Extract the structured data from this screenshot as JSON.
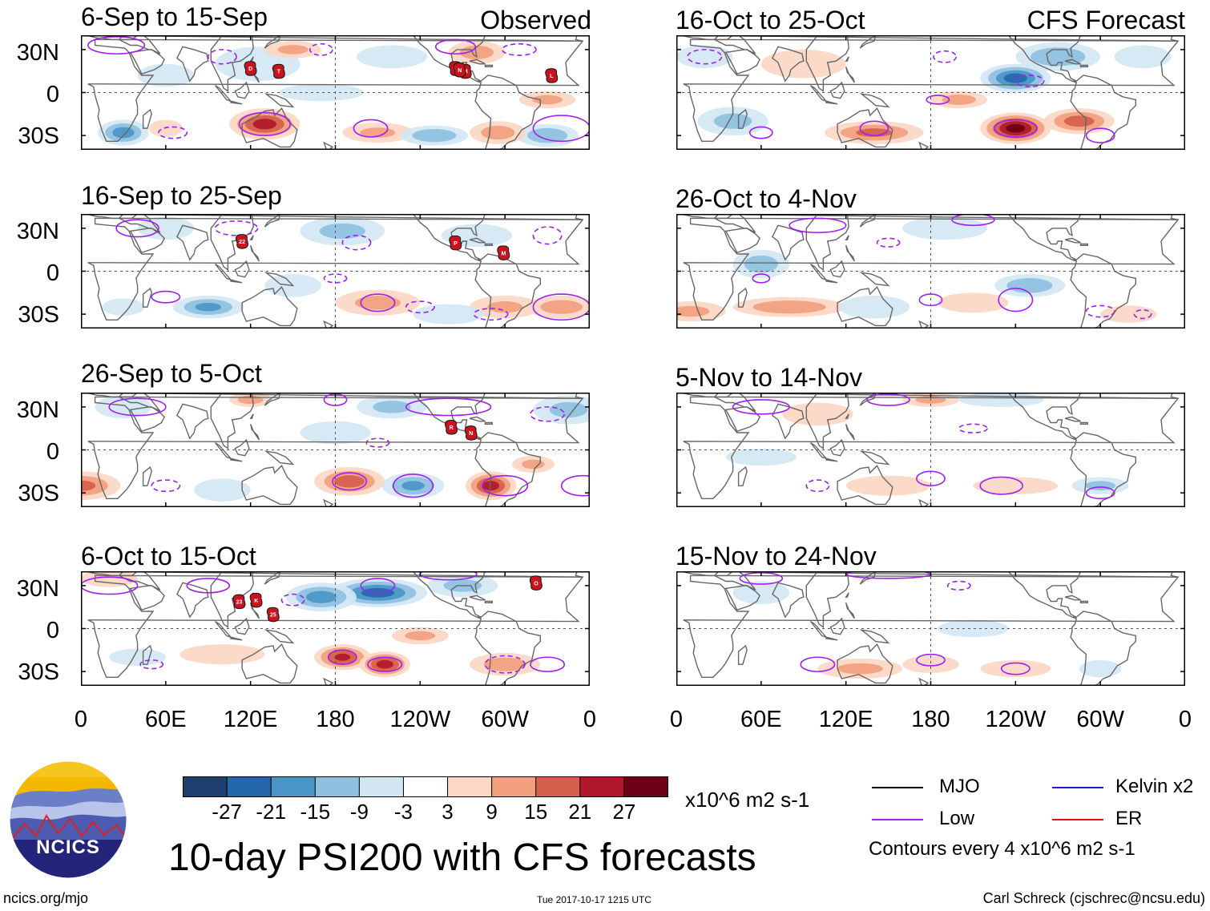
{
  "panels": [
    {
      "title": "6-Sep to 15-Sep",
      "tag": "Observed",
      "storms": [
        {
          "label": "D",
          "lon": 120,
          "lat": 17
        },
        {
          "label": "T",
          "lon": 140,
          "lat": 15
        },
        {
          "label": "O",
          "lon": -95,
          "lat": 17
        },
        {
          "label": "M",
          "lon": -88,
          "lat": 15
        },
        {
          "label": "L",
          "lon": -27,
          "lat": 12
        },
        {
          "label": "N",
          "lon": -92,
          "lat": 16
        }
      ]
    },
    {
      "title": "16-Sep to 25-Sep",
      "tag": "",
      "storms": [
        {
          "label": "22",
          "lon": 114,
          "lat": 21
        },
        {
          "label": "P",
          "lon": -95,
          "lat": 20
        },
        {
          "label": "M",
          "lon": -61,
          "lat": 13
        }
      ]
    },
    {
      "title": "26-Sep to 5-Oct",
      "tag": "",
      "storms": [
        {
          "label": "R",
          "lon": -98,
          "lat": 16
        },
        {
          "label": "N",
          "lon": -84,
          "lat": 12
        }
      ]
    },
    {
      "title": "6-Oct to 15-Oct",
      "tag": "",
      "storms": [
        {
          "label": "23",
          "lon": 112,
          "lat": 19
        },
        {
          "label": "K",
          "lon": 124,
          "lat": 20
        },
        {
          "label": "25",
          "lon": 136,
          "lat": 10
        },
        {
          "label": "O",
          "lon": -38,
          "lat": 32
        }
      ]
    },
    {
      "title": "16-Oct to 25-Oct",
      "tag": "CFS Forecast",
      "storms": []
    },
    {
      "title": "26-Oct to 4-Nov",
      "tag": "",
      "storms": []
    },
    {
      "title": "5-Nov to 14-Nov",
      "tag": "",
      "storms": []
    },
    {
      "title": "15-Nov to 24-Nov",
      "tag": "",
      "storms": []
    }
  ],
  "lat_labels": [
    "30N",
    "0",
    "30S"
  ],
  "lon_labels": [
    "0",
    "60E",
    "120E",
    "180",
    "120W",
    "60W",
    "0"
  ],
  "colorbar": {
    "ticks": [
      "-27",
      "-21",
      "-15",
      "-9",
      "-3",
      "3",
      "9",
      "15",
      "21",
      "27"
    ],
    "colors": [
      "#1f3f6e",
      "#2468ab",
      "#4a95c7",
      "#8ec0e0",
      "#d3e7f3",
      "#ffffff",
      "#fbd7c4",
      "#f2a07e",
      "#d6604d",
      "#b2182b",
      "#6e0017"
    ],
    "units": "x10^6 m2 s-1"
  },
  "legend": {
    "items": [
      {
        "label": "MJO",
        "color": "#000000"
      },
      {
        "label": "Kelvin x2",
        "color": "#1a1adb"
      },
      {
        "label": "Low",
        "color": "#a020f0"
      },
      {
        "label": "ER",
        "color": "#e01010"
      }
    ],
    "contour_note": "Contours every 4 x10^6 m2 s-1"
  },
  "logo_text": "NCICS",
  "main_title": "10-day PSI200 with CFS forecasts",
  "footer": {
    "left": "ncics.org/mjo",
    "center": "Tue 2017-10-17 1215 UTC",
    "right": "Carl Schreck (cjschrec@ncsu.edu)"
  },
  "colors": {
    "land": "#666666",
    "low_contour": "#a020f0",
    "storm": "#c8141e"
  }
}
